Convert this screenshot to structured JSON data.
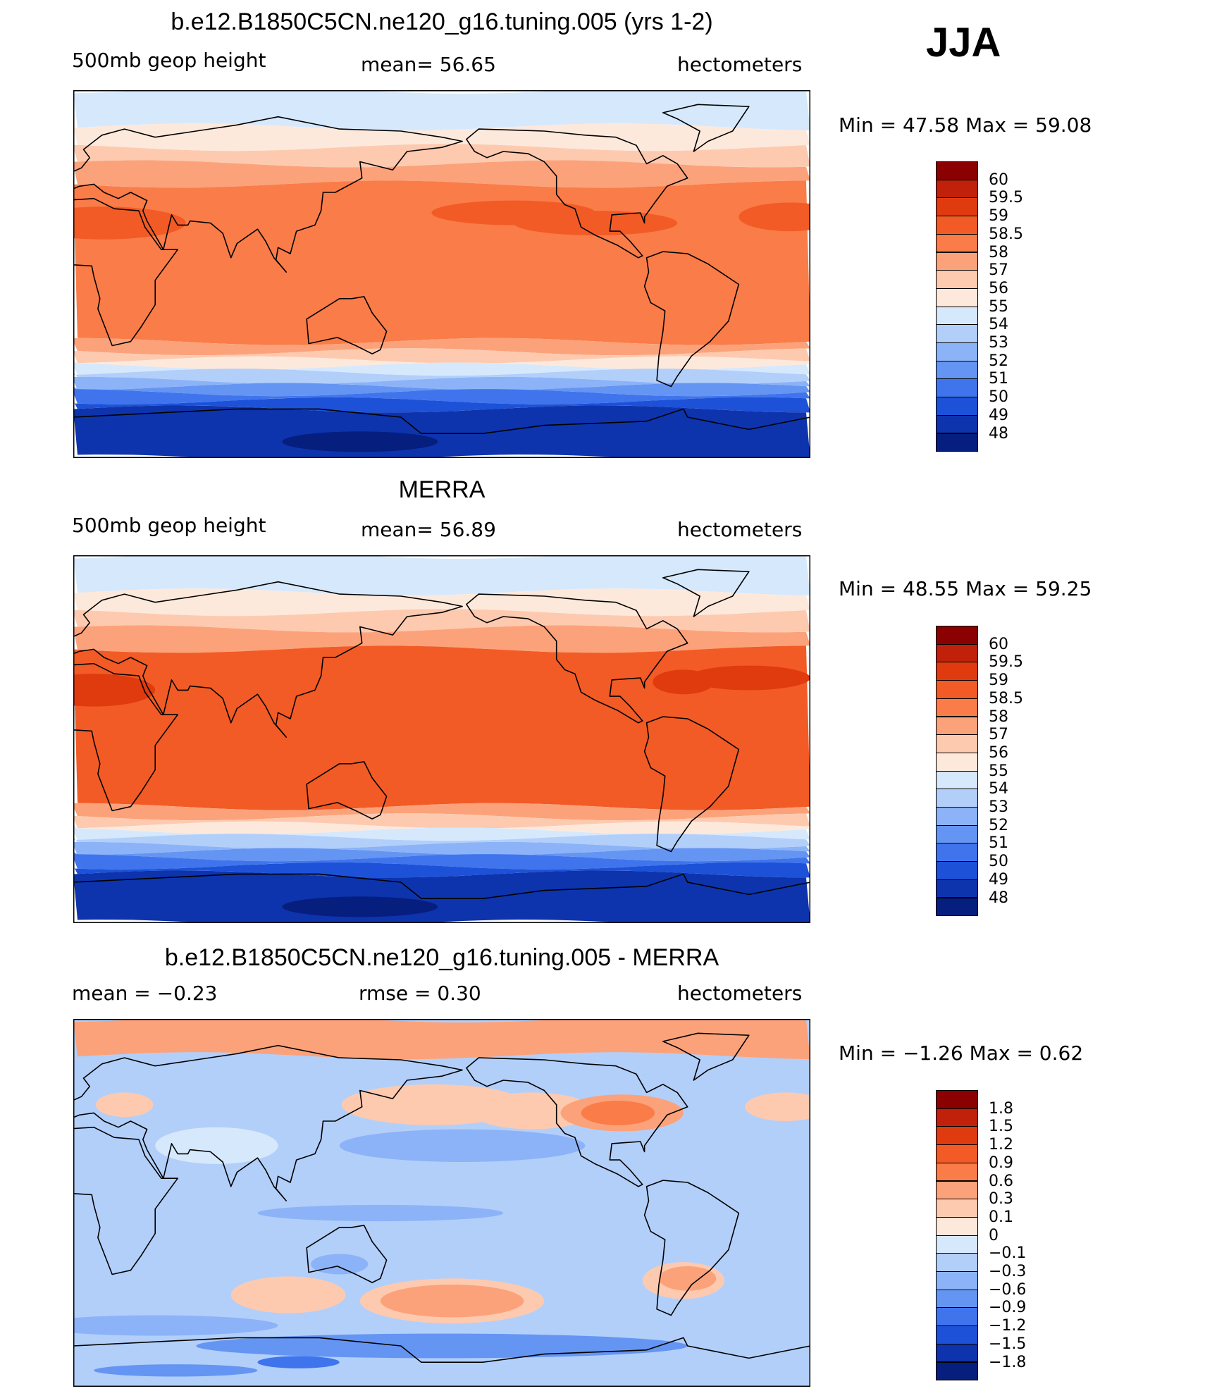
{
  "season": "JJA",
  "panels": [
    {
      "title": "b.e12.B1850C5CN.ne120_g16.tuning.005 (yrs 1-2)",
      "left_text": "500mb  geop  height",
      "center_text": "mean=   56.65",
      "right_text": "hectometers",
      "minmax_text": "Min  =    47.58  Max  =    59.08",
      "field": "model",
      "colorbar_labels": [
        "60",
        "59.5",
        "59",
        "58.5",
        "58",
        "57",
        "56",
        "55",
        "54",
        "53",
        "52",
        "51",
        "50",
        "49",
        "48"
      ],
      "colors": [
        "#8b0000",
        "#c1200a",
        "#e03a0f",
        "#f25b25",
        "#fa7c48",
        "#fca27a",
        "#fdcab0",
        "#fde9dc",
        "#d6e8fc",
        "#b2cffa",
        "#8cb3f7",
        "#6595f2",
        "#3f74ec",
        "#1c51d8",
        "#0d34ad",
        "#061e7e"
      ]
    },
    {
      "title": "MERRA",
      "left_text": "500mb  geop  height",
      "center_text": "mean=   56.89",
      "right_text": "hectometers",
      "minmax_text": "Min  =    48.55  Max  =    59.25",
      "field": "obs",
      "colorbar_labels": [
        "60",
        "59.5",
        "59",
        "58.5",
        "58",
        "57",
        "56",
        "55",
        "54",
        "53",
        "52",
        "51",
        "50",
        "49",
        "48"
      ],
      "colors": [
        "#8b0000",
        "#c1200a",
        "#e03a0f",
        "#f25b25",
        "#fa7c48",
        "#fca27a",
        "#fdcab0",
        "#fde9dc",
        "#d6e8fc",
        "#b2cffa",
        "#8cb3f7",
        "#6595f2",
        "#3f74ec",
        "#1c51d8",
        "#0d34ad",
        "#061e7e"
      ]
    },
    {
      "title": "b.e12.B1850C5CN.ne120_g16.tuning.005 - MERRA",
      "left_text": "mean  =    −0.23",
      "center_text": "rmse  =     0.30",
      "right_text": "hectometers",
      "minmax_text": "Min  =    −1.26  Max  =     0.62",
      "field": "diff",
      "colorbar_labels": [
        "1.8",
        "1.5",
        "1.2",
        "0.9",
        "0.6",
        "0.3",
        "0.1",
        "0",
        "−0.1",
        "−0.3",
        "−0.6",
        "−0.9",
        "−1.2",
        "−1.5",
        "−1.8"
      ],
      "colors": [
        "#8b0000",
        "#c1200a",
        "#e03a0f",
        "#f25b25",
        "#fa7c48",
        "#fca27a",
        "#fdcab0",
        "#fde9dc",
        "#d6e8fc",
        "#b2cffa",
        "#8cb3f7",
        "#6595f2",
        "#3f74ec",
        "#1c51d8",
        "#0d34ad",
        "#061e7e"
      ]
    }
  ]
}
